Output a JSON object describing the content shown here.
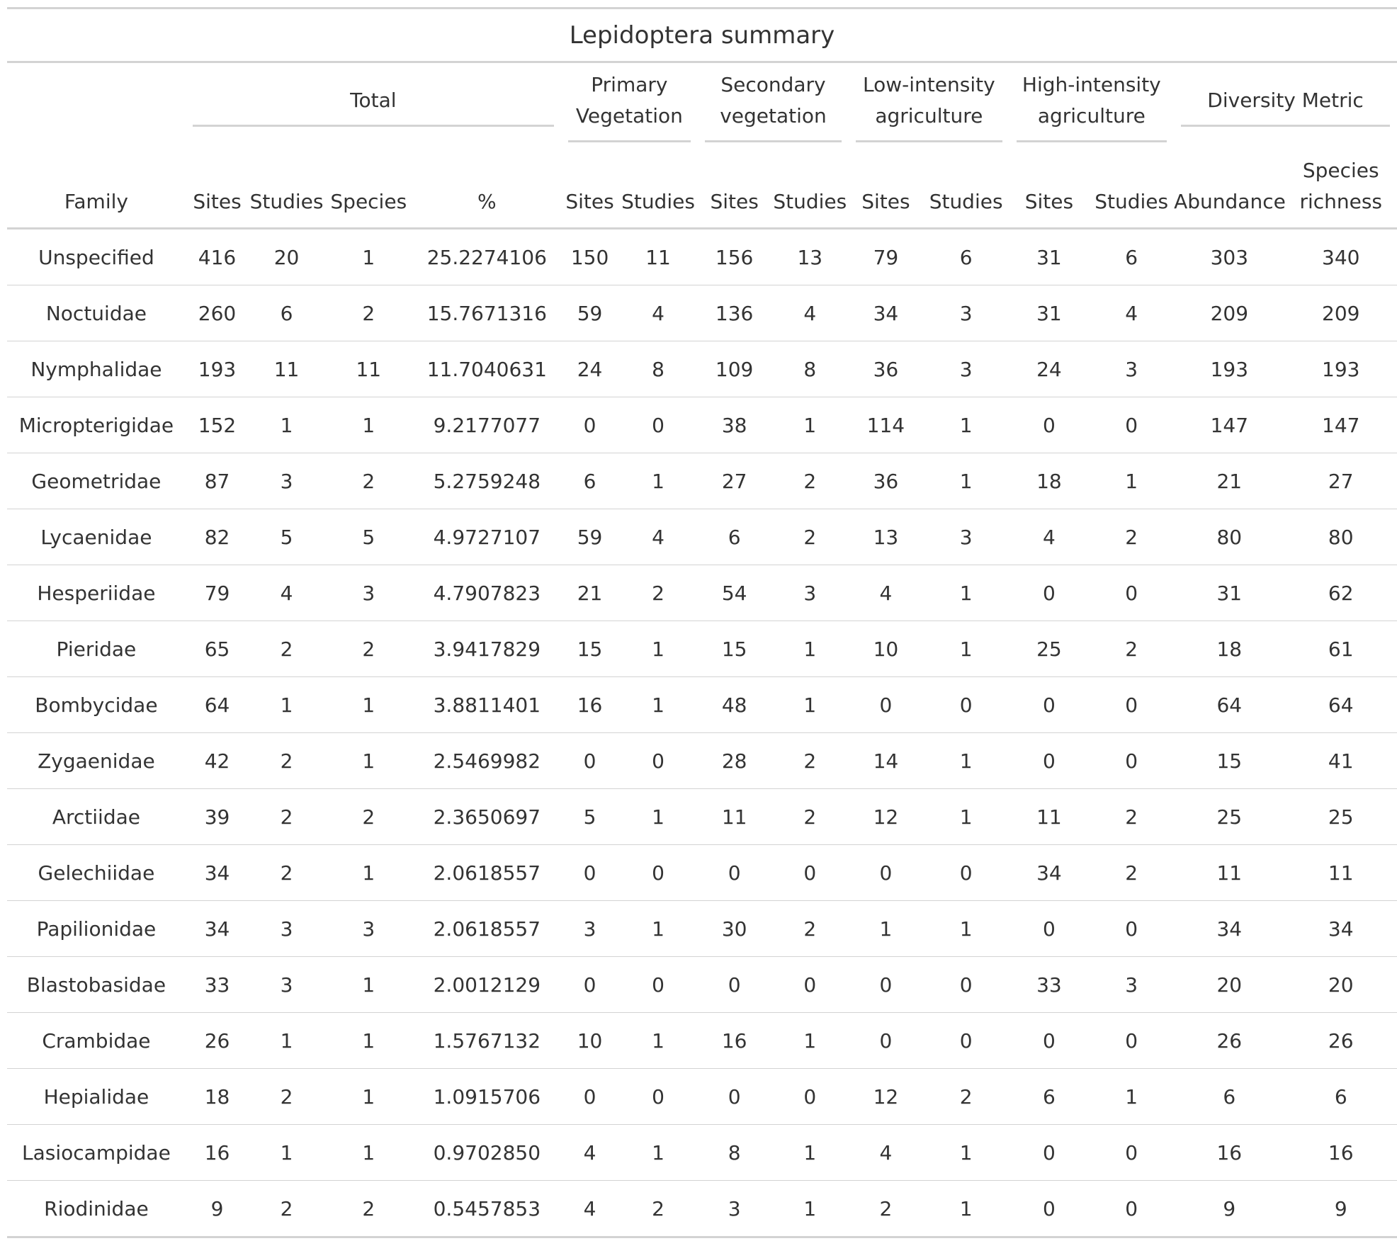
{
  "title": "Lepidoptera summary",
  "spanners": {
    "total": "Total",
    "primary": [
      "Primary",
      "Vegetation"
    ],
    "secondary": [
      "Secondary",
      "vegetation"
    ],
    "low": [
      "Low-intensity",
      "agriculture"
    ],
    "high": [
      "High-intensity",
      "agriculture"
    ],
    "diversity": "Diversity Metric"
  },
  "columns": {
    "family": "Family",
    "sites": "Sites",
    "studies": "Studies",
    "species": "Species",
    "pct": "%",
    "abundance": "Abundance",
    "richness": [
      "Species",
      "richness"
    ]
  },
  "rows": [
    [
      "Unspecified",
      "416",
      "20",
      "1",
      "25.2274106",
      "150",
      "11",
      "156",
      "13",
      "79",
      "6",
      "31",
      "6",
      "303",
      "340"
    ],
    [
      "Noctuidae",
      "260",
      "6",
      "2",
      "15.7671316",
      "59",
      "4",
      "136",
      "4",
      "34",
      "3",
      "31",
      "4",
      "209",
      "209"
    ],
    [
      "Nymphalidae",
      "193",
      "11",
      "11",
      "11.7040631",
      "24",
      "8",
      "109",
      "8",
      "36",
      "3",
      "24",
      "3",
      "193",
      "193"
    ],
    [
      "Micropterigidae",
      "152",
      "1",
      "1",
      "9.2177077",
      "0",
      "0",
      "38",
      "1",
      "114",
      "1",
      "0",
      "0",
      "147",
      "147"
    ],
    [
      "Geometridae",
      "87",
      "3",
      "2",
      "5.2759248",
      "6",
      "1",
      "27",
      "2",
      "36",
      "1",
      "18",
      "1",
      "21",
      "27"
    ],
    [
      "Lycaenidae",
      "82",
      "5",
      "5",
      "4.9727107",
      "59",
      "4",
      "6",
      "2",
      "13",
      "3",
      "4",
      "2",
      "80",
      "80"
    ],
    [
      "Hesperiidae",
      "79",
      "4",
      "3",
      "4.7907823",
      "21",
      "2",
      "54",
      "3",
      "4",
      "1",
      "0",
      "0",
      "31",
      "62"
    ],
    [
      "Pieridae",
      "65",
      "2",
      "2",
      "3.9417829",
      "15",
      "1",
      "15",
      "1",
      "10",
      "1",
      "25",
      "2",
      "18",
      "61"
    ],
    [
      "Bombycidae",
      "64",
      "1",
      "1",
      "3.8811401",
      "16",
      "1",
      "48",
      "1",
      "0",
      "0",
      "0",
      "0",
      "64",
      "64"
    ],
    [
      "Zygaenidae",
      "42",
      "2",
      "1",
      "2.5469982",
      "0",
      "0",
      "28",
      "2",
      "14",
      "1",
      "0",
      "0",
      "15",
      "41"
    ],
    [
      "Arctiidae",
      "39",
      "2",
      "2",
      "2.3650697",
      "5",
      "1",
      "11",
      "2",
      "12",
      "1",
      "11",
      "2",
      "25",
      "25"
    ],
    [
      "Gelechiidae",
      "34",
      "2",
      "1",
      "2.0618557",
      "0",
      "0",
      "0",
      "0",
      "0",
      "0",
      "34",
      "2",
      "11",
      "11"
    ],
    [
      "Papilionidae",
      "34",
      "3",
      "3",
      "2.0618557",
      "3",
      "1",
      "30",
      "2",
      "1",
      "1",
      "0",
      "0",
      "34",
      "34"
    ],
    [
      "Blastobasidae",
      "33",
      "3",
      "1",
      "2.0012129",
      "0",
      "0",
      "0",
      "0",
      "0",
      "0",
      "33",
      "3",
      "20",
      "20"
    ],
    [
      "Crambidae",
      "26",
      "1",
      "1",
      "1.5767132",
      "10",
      "1",
      "16",
      "1",
      "0",
      "0",
      "0",
      "0",
      "26",
      "26"
    ],
    [
      "Hepialidae",
      "18",
      "2",
      "1",
      "1.0915706",
      "0",
      "0",
      "0",
      "0",
      "12",
      "2",
      "6",
      "1",
      "6",
      "6"
    ],
    [
      "Lasiocampidae",
      "16",
      "1",
      "1",
      "0.9702850",
      "4",
      "1",
      "8",
      "1",
      "4",
      "1",
      "0",
      "0",
      "16",
      "16"
    ],
    [
      "Riodinidae",
      "9",
      "2",
      "2",
      "0.5457853",
      "4",
      "2",
      "3",
      "1",
      "2",
      "1",
      "0",
      "0",
      "9",
      "9"
    ]
  ]
}
